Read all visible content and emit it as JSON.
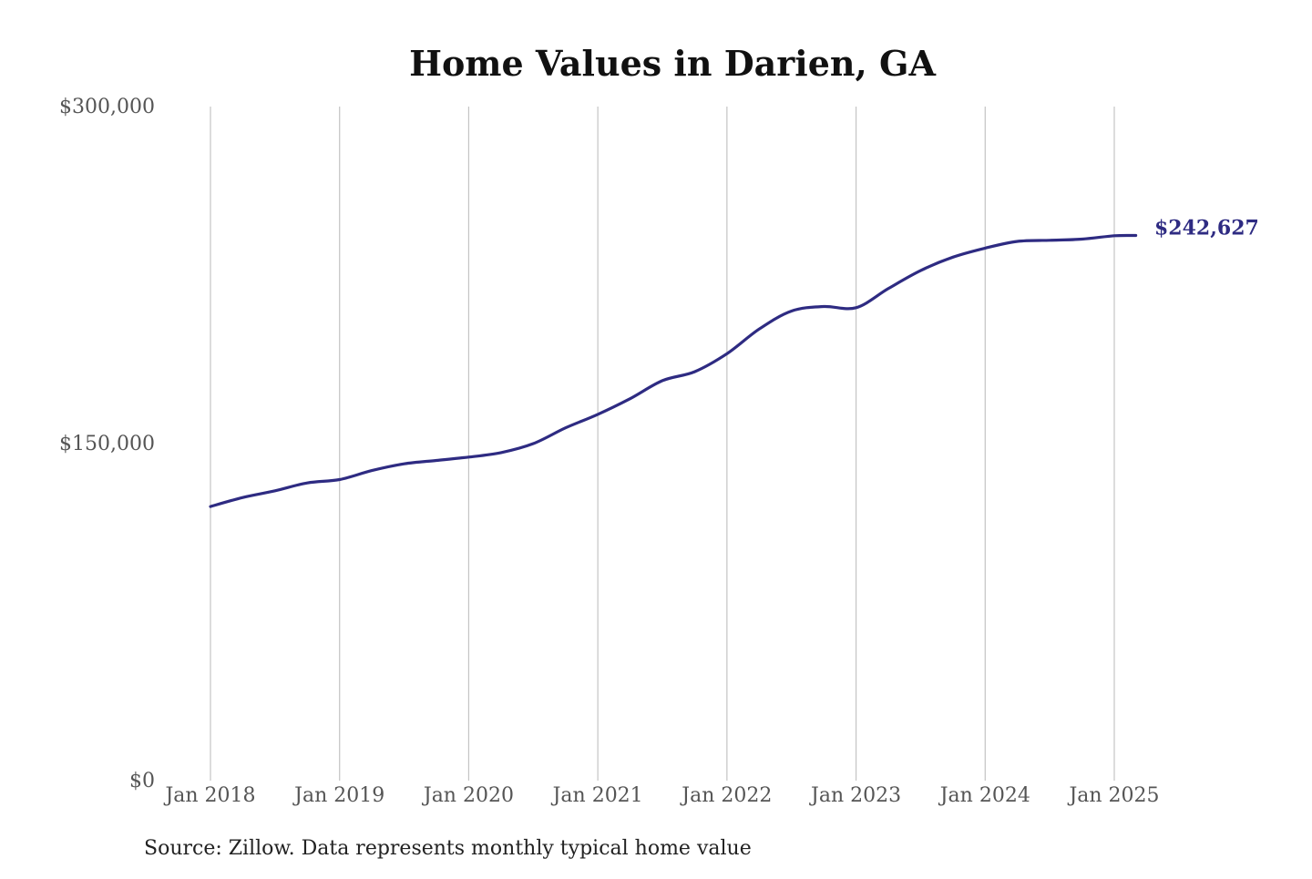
{
  "chart_data": {
    "type": "line",
    "title": "Home Values in Darien, GA",
    "source_note": "Source: Zillow. Data represents monthly typical home value",
    "xlabel": "",
    "ylabel": "",
    "ylim": [
      0,
      300000
    ],
    "y_ticks": [
      {
        "value": 0,
        "label": "$0"
      },
      {
        "value": 150000,
        "label": "$150,000"
      },
      {
        "value": 300000,
        "label": "$300,000"
      }
    ],
    "x_ticks": [
      {
        "date": "2018-01",
        "label": "Jan 2018"
      },
      {
        "date": "2019-01",
        "label": "Jan 2019"
      },
      {
        "date": "2020-01",
        "label": "Jan 2020"
      },
      {
        "date": "2021-01",
        "label": "Jan 2021"
      },
      {
        "date": "2022-01",
        "label": "Jan 2022"
      },
      {
        "date": "2023-01",
        "label": "Jan 2023"
      },
      {
        "date": "2024-01",
        "label": "Jan 2024"
      },
      {
        "date": "2025-01",
        "label": "Jan 2025"
      }
    ],
    "xlim": [
      "2018-01",
      "2025-03"
    ],
    "grid": {
      "vertical": true,
      "horizontal": false
    },
    "line_color": "#2e2b82",
    "series": [
      {
        "end_label": "$242,627",
        "points": [
          {
            "date": "2018-01",
            "value": 122000
          },
          {
            "date": "2018-04",
            "value": 126000
          },
          {
            "date": "2018-07",
            "value": 129000
          },
          {
            "date": "2018-10",
            "value": 132500
          },
          {
            "date": "2019-01",
            "value": 134000
          },
          {
            "date": "2019-04",
            "value": 138000
          },
          {
            "date": "2019-07",
            "value": 141000
          },
          {
            "date": "2019-10",
            "value": 142500
          },
          {
            "date": "2020-01",
            "value": 144000
          },
          {
            "date": "2020-04",
            "value": 146000
          },
          {
            "date": "2020-07",
            "value": 150000
          },
          {
            "date": "2020-10",
            "value": 157000
          },
          {
            "date": "2021-01",
            "value": 163000
          },
          {
            "date": "2021-04",
            "value": 170000
          },
          {
            "date": "2021-07",
            "value": 178000
          },
          {
            "date": "2021-10",
            "value": 182000
          },
          {
            "date": "2022-01",
            "value": 190000
          },
          {
            "date": "2022-04",
            "value": 201000
          },
          {
            "date": "2022-07",
            "value": 209000
          },
          {
            "date": "2022-10",
            "value": 211000
          },
          {
            "date": "2023-01",
            "value": 210500
          },
          {
            "date": "2023-04",
            "value": 219000
          },
          {
            "date": "2023-07",
            "value": 227000
          },
          {
            "date": "2023-10",
            "value": 233000
          },
          {
            "date": "2024-01",
            "value": 237000
          },
          {
            "date": "2024-04",
            "value": 240000
          },
          {
            "date": "2024-07",
            "value": 240500
          },
          {
            "date": "2024-10",
            "value": 241000
          },
          {
            "date": "2025-01",
            "value": 242500
          },
          {
            "date": "2025-03",
            "value": 242627
          }
        ]
      }
    ]
  }
}
